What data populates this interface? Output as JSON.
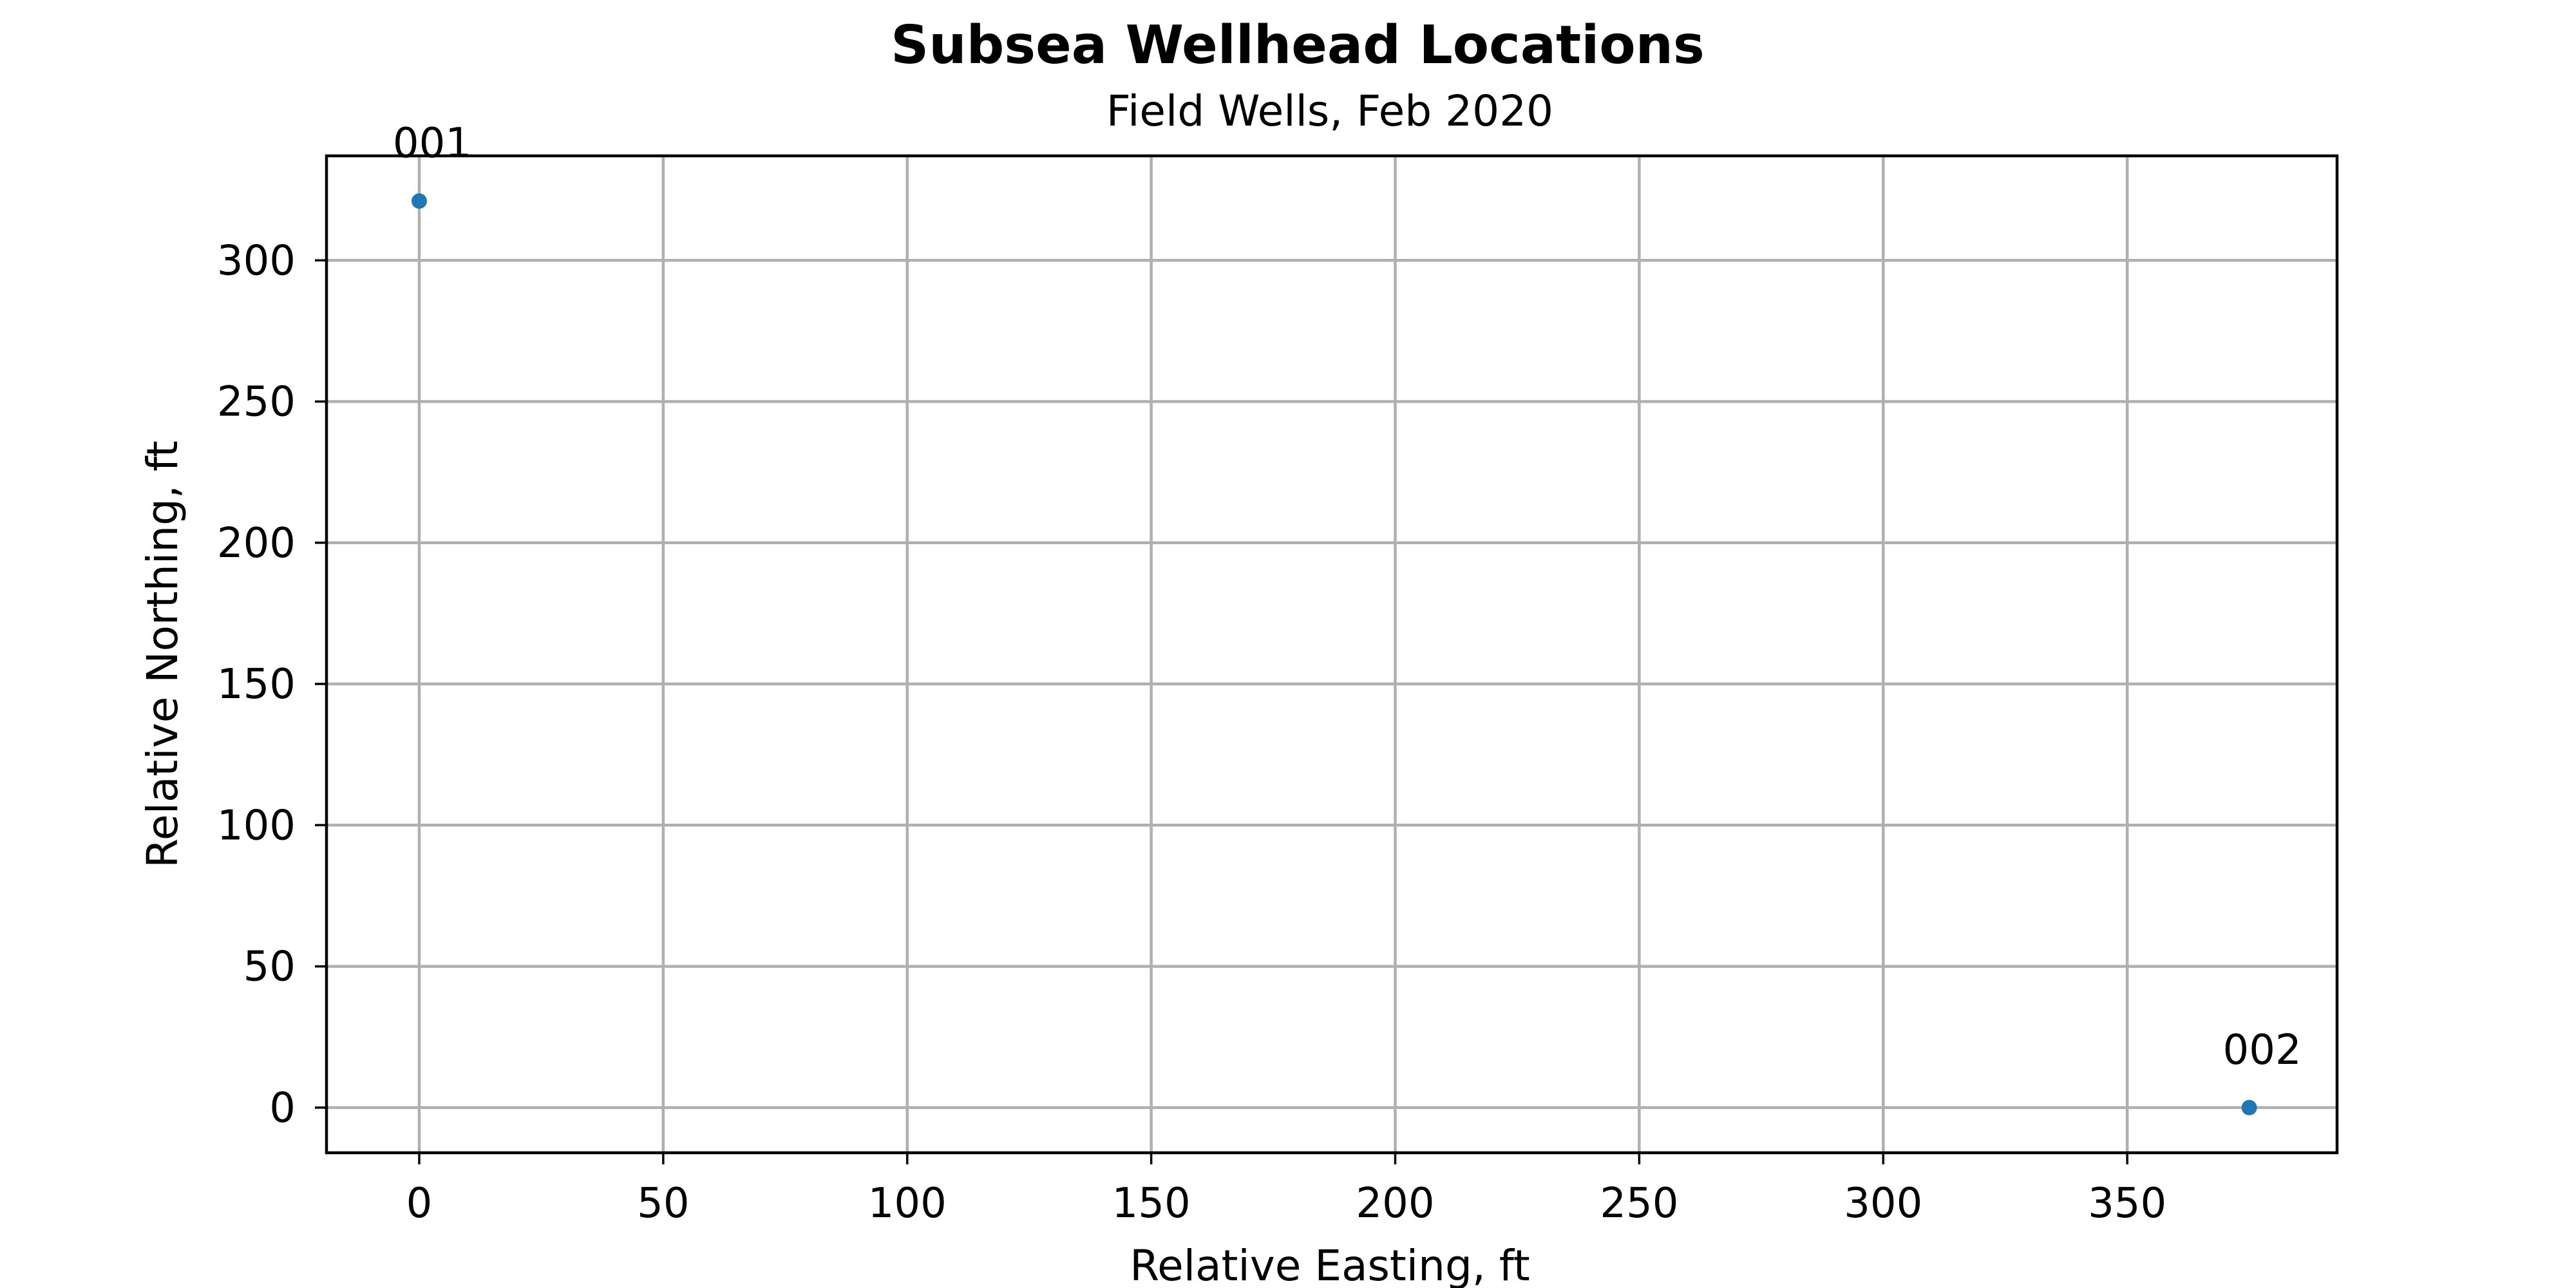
{
  "chart_data": {
    "type": "scatter",
    "title": "Subsea Wellhead Locations",
    "subtitle": "Field Wells, Feb 2020",
    "xlabel": "Relative Easting, ft",
    "ylabel": "Relative Northing, ft",
    "xlim": [
      -19,
      393
    ],
    "ylim": [
      -16,
      337
    ],
    "x_ticks": [
      0,
      50,
      100,
      150,
      200,
      250,
      300,
      350
    ],
    "y_ticks": [
      0,
      50,
      100,
      150,
      200,
      250,
      300
    ],
    "grid": true,
    "points": [
      {
        "label": "001",
        "x": 0,
        "y": 321
      },
      {
        "label": "002",
        "x": 375,
        "y": 0
      }
    ],
    "colors": {
      "marker": "#1f77b4",
      "grid": "#b0b0b0",
      "frame": "#000000"
    }
  }
}
